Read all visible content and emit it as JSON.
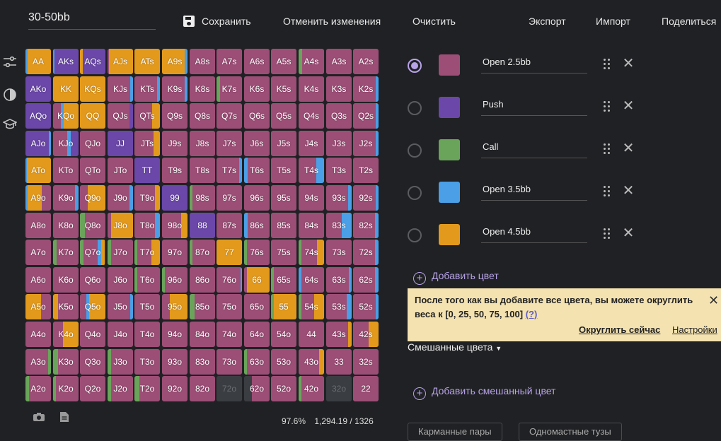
{
  "range_name": "30-50bb",
  "toolbar": {
    "save": "Сохранить",
    "undo": "Отменить изменения",
    "clear": "Очистить",
    "export": "Экспорт",
    "import": "Импорт",
    "share": "Поделиться"
  },
  "sidebar": {
    "icons": [
      "sliders-icon",
      "contrast-icon",
      "graduation-cap-icon"
    ]
  },
  "colors": {
    "open25": "#9c4e76",
    "push": "#6a47a8",
    "call": "#6aa45a",
    "open35": "#4a9fe6",
    "open45": "#e39a1c",
    "empty": "#3a3d42",
    "accent": "#b7a3e8"
  },
  "grid": {
    "rows": [
      [
        "AA",
        "AKs",
        "AQs",
        "AJs",
        "ATs",
        "A9s",
        "A8s",
        "A7s",
        "A6s",
        "A5s",
        "A4s",
        "A3s",
        "A2s"
      ],
      [
        "AKo",
        "KK",
        "KQs",
        "KJs",
        "KTs",
        "K9s",
        "K8s",
        "K7s",
        "K6s",
        "K5s",
        "K4s",
        "K3s",
        "K2s"
      ],
      [
        "AQo",
        "KQo",
        "QQ",
        "QJs",
        "QTs",
        "Q9s",
        "Q8s",
        "Q7s",
        "Q6s",
        "Q5s",
        "Q4s",
        "Q3s",
        "Q2s"
      ],
      [
        "AJo",
        "KJo",
        "QJo",
        "JJ",
        "JTs",
        "J9s",
        "J8s",
        "J7s",
        "J6s",
        "J5s",
        "J4s",
        "J3s",
        "J2s"
      ],
      [
        "ATo",
        "KTo",
        "QTo",
        "JTo",
        "TT",
        "T9s",
        "T8s",
        "T7s",
        "T6s",
        "T5s",
        "T4s",
        "T3s",
        "T2s"
      ],
      [
        "A9o",
        "K9o",
        "Q9o",
        "J9o",
        "T9o",
        "99",
        "98s",
        "97s",
        "96s",
        "95s",
        "94s",
        "93s",
        "92s"
      ],
      [
        "A8o",
        "K8o",
        "Q8o",
        "J8o",
        "T8o",
        "98o",
        "88",
        "87s",
        "86s",
        "85s",
        "84s",
        "83s",
        "82s"
      ],
      [
        "A7o",
        "K7o",
        "Q7o",
        "J7o",
        "T7o",
        "97o",
        "87o",
        "77",
        "76s",
        "75s",
        "74s",
        "73s",
        "72s"
      ],
      [
        "A6o",
        "K6o",
        "Q6o",
        "J6o",
        "T6o",
        "96o",
        "86o",
        "76o",
        "66",
        "65s",
        "64s",
        "63s",
        "62s"
      ],
      [
        "A5o",
        "K5o",
        "Q5o",
        "J5o",
        "T5o",
        "95o",
        "85o",
        "75o",
        "65o",
        "55",
        "54s",
        "53s",
        "52s"
      ],
      [
        "A4o",
        "K4o",
        "Q4o",
        "J4o",
        "T4o",
        "94o",
        "84o",
        "74o",
        "64o",
        "54o",
        "44",
        "43s",
        "42s"
      ],
      [
        "A3o",
        "K3o",
        "Q3o",
        "J3o",
        "T3o",
        "93o",
        "83o",
        "73o",
        "63o",
        "53o",
        "43o",
        "33",
        "32s"
      ],
      [
        "A2o",
        "K2o",
        "Q2o",
        "J2o",
        "T2o",
        "92o",
        "82o",
        "72o",
        "62o",
        "52o",
        "42o",
        "32o",
        "22"
      ]
    ],
    "mixes": {
      "AA": [
        [
          "open35",
          0.08
        ],
        [
          "open45",
          0.92
        ]
      ],
      "AKs": [
        [
          "open35",
          0.05
        ],
        [
          "push",
          0.95
        ]
      ],
      "AQs": [
        [
          "open45",
          0.12
        ],
        [
          "push",
          0.88
        ]
      ],
      "AJs": [
        [
          "open25",
          0.06
        ],
        [
          "open45",
          0.94
        ]
      ],
      "ATs": [
        [
          "open45",
          1.0
        ]
      ],
      "A9s": [
        [
          "open45",
          0.9
        ],
        [
          "open35",
          0.1
        ]
      ],
      "A4s": [
        [
          "call",
          0.15
        ],
        [
          "open25",
          0.85
        ]
      ],
      "AKo": [
        [
          "push",
          1.0
        ]
      ],
      "KK": [
        [
          "open45",
          1.0
        ]
      ],
      "KQs": [
        [
          "open45",
          1.0
        ]
      ],
      "KJs": [
        [
          "open25",
          0.9
        ],
        [
          "open35",
          0.1
        ]
      ],
      "KTs": [
        [
          "open25",
          0.9
        ],
        [
          "open35",
          0.1
        ]
      ],
      "K9s": [
        [
          "open25",
          0.9
        ],
        [
          "open35",
          0.1
        ]
      ],
      "K7s": [
        [
          "call",
          0.15
        ],
        [
          "open25",
          0.85
        ]
      ],
      "K2s": [
        [
          "open25",
          0.9
        ],
        [
          "open35",
          0.1
        ]
      ],
      "AQo": [
        [
          "push",
          1.0
        ]
      ],
      "KQo": [
        [
          "open25",
          0.3
        ],
        [
          "open35",
          0.12
        ],
        [
          "open45",
          0.58
        ]
      ],
      "QQ": [
        [
          "open45",
          1.0
        ]
      ],
      "QJs": [
        [
          "open25",
          0.85
        ],
        [
          "push",
          0.15
        ]
      ],
      "QTs": [
        [
          "open25",
          0.7
        ],
        [
          "open45",
          0.3
        ]
      ],
      "Q2s": [
        [
          "open25",
          0.9
        ],
        [
          "open35",
          0.1
        ]
      ],
      "AJo": [
        [
          "push",
          0.92
        ],
        [
          "open35",
          0.08
        ]
      ],
      "KJo": [
        [
          "open25",
          0.55
        ],
        [
          "open35",
          0.15
        ],
        [
          "push",
          0.3
        ]
      ],
      "JJ": [
        [
          "push",
          1.0
        ]
      ],
      "JTs": [
        [
          "open25",
          0.75
        ],
        [
          "open45",
          0.25
        ]
      ],
      "J2s": [
        [
          "open25",
          0.9
        ],
        [
          "open35",
          0.1
        ]
      ],
      "ATo": [
        [
          "open35",
          0.05
        ],
        [
          "open45",
          0.95
        ]
      ],
      "TT": [
        [
          "push",
          1.0
        ]
      ],
      "T7s": [
        [
          "open25",
          0.9
        ],
        [
          "open35",
          0.1
        ]
      ],
      "T6s": [
        [
          "open35",
          0.15
        ],
        [
          "open25",
          0.85
        ]
      ],
      "T4s": [
        [
          "open25",
          0.7
        ],
        [
          "open35",
          0.3
        ]
      ],
      "A9o": [
        [
          "open35",
          0.08
        ],
        [
          "open45",
          0.55
        ],
        [
          "open25",
          0.37
        ]
      ],
      "K9o": [
        [
          "open25",
          0.85
        ],
        [
          "open35",
          0.15
        ]
      ],
      "Q9o": [
        [
          "open25",
          0.3
        ],
        [
          "open45",
          0.7
        ]
      ],
      "J9o": [
        [
          "open25",
          0.85
        ],
        [
          "open35",
          0.15
        ]
      ],
      "T9o": [
        [
          "open25",
          0.8
        ],
        [
          "open45",
          0.2
        ]
      ],
      "99": [
        [
          "push",
          1.0
        ]
      ],
      "98s": [
        [
          "call",
          0.1
        ],
        [
          "open25",
          0.9
        ]
      ],
      "93s": [
        [
          "open25",
          0.85
        ],
        [
          "open35",
          0.15
        ]
      ],
      "92s": [
        [
          "open25",
          0.9
        ],
        [
          "open35",
          0.1
        ]
      ],
      "Q8o": [
        [
          "call",
          0.2
        ],
        [
          "open25",
          0.8
        ]
      ],
      "J8o": [
        [
          "open25",
          0.15
        ],
        [
          "open45",
          0.85
        ]
      ],
      "T8o": [
        [
          "open25",
          0.8
        ],
        [
          "open35",
          0.2
        ]
      ],
      "98o": [
        [
          "open25",
          0.75
        ],
        [
          "open45",
          0.25
        ]
      ],
      "88": [
        [
          "push",
          1.0
        ]
      ],
      "86s": [
        [
          "open35",
          0.15
        ],
        [
          "open25",
          0.85
        ]
      ],
      "83s": [
        [
          "open25",
          0.6
        ],
        [
          "open35",
          0.4
        ]
      ],
      "82s": [
        [
          "open25",
          0.85
        ],
        [
          "open35",
          0.15
        ]
      ],
      "K7o": [
        [
          "call",
          0.15
        ],
        [
          "open25",
          0.85
        ]
      ],
      "Q7o": [
        [
          "call",
          0.15
        ],
        [
          "open25",
          0.55
        ],
        [
          "open35",
          0.15
        ],
        [
          "open45",
          0.15
        ]
      ],
      "J7o": [
        [
          "call",
          0.15
        ],
        [
          "open25",
          0.85
        ]
      ],
      "T7o": [
        [
          "call",
          0.1
        ],
        [
          "open25",
          0.55
        ],
        [
          "open45",
          0.35
        ]
      ],
      "87o": [
        [
          "call",
          0.1
        ],
        [
          "open25",
          0.9
        ]
      ],
      "77": [
        [
          "open45",
          1.0
        ]
      ],
      "76s": [
        [
          "call",
          0.12
        ],
        [
          "open25",
          0.88
        ]
      ],
      "74s": [
        [
          "call",
          0.1
        ],
        [
          "open25",
          0.6
        ],
        [
          "open45",
          0.3
        ]
      ],
      "72s": [
        [
          "open25",
          0.85
        ],
        [
          "open35",
          0.15
        ]
      ],
      "T6o": [
        [
          "call",
          0.1
        ],
        [
          "open25",
          0.9
        ]
      ],
      "96o": [
        [
          "call",
          0.1
        ],
        [
          "open25",
          0.9
        ]
      ],
      "76o": [
        [
          "open25",
          0.95
        ],
        [
          "open35",
          0.05
        ]
      ],
      "66": [
        [
          "open25",
          0.1
        ],
        [
          "open45",
          0.9
        ]
      ],
      "65s": [
        [
          "call",
          0.12
        ],
        [
          "open25",
          0.88
        ]
      ],
      "64s": [
        [
          "open35",
          0.12
        ],
        [
          "open25",
          0.88
        ]
      ],
      "63s": [
        [
          "open25",
          0.9
        ],
        [
          "open35",
          0.1
        ]
      ],
      "62s": [
        [
          "open25",
          0.85
        ],
        [
          "open35",
          0.15
        ]
      ],
      "A5o": [
        [
          "open45",
          0.6
        ],
        [
          "open25",
          0.4
        ]
      ],
      "K5o": [
        [
          "open45",
          0.2
        ],
        [
          "open25",
          0.8
        ]
      ],
      "Q5o": [
        [
          "open25",
          0.25
        ],
        [
          "open35",
          0.1
        ],
        [
          "open45",
          0.65
        ]
      ],
      "J5o": [
        [
          "open25",
          0.9
        ],
        [
          "open35",
          0.1
        ]
      ],
      "95o": [
        [
          "open25",
          0.3
        ],
        [
          "open45",
          0.7
        ]
      ],
      "85o": [
        [
          "call",
          0.2
        ],
        [
          "open25",
          0.8
        ]
      ],
      "55": [
        [
          "call",
          0.1
        ],
        [
          "open45",
          0.9
        ]
      ],
      "54s": [
        [
          "call",
          0.1
        ],
        [
          "open25",
          0.5
        ],
        [
          "open45",
          0.4
        ]
      ],
      "53s": [
        [
          "open25",
          0.8
        ],
        [
          "open35",
          0.2
        ]
      ],
      "52s": [
        [
          "open25",
          0.9
        ],
        [
          "open35",
          0.1
        ]
      ],
      "K4o": [
        [
          "open25",
          0.4
        ],
        [
          "open45",
          0.6
        ]
      ],
      "43s": [
        [
          "open25",
          0.85
        ],
        [
          "open45",
          0.15
        ]
      ],
      "42s": [
        [
          "open25",
          0.6
        ],
        [
          "open45",
          0.4
        ]
      ],
      "A3o": [
        [
          "open25",
          0.9
        ],
        [
          "call",
          0.1
        ]
      ],
      "K3o": [
        [
          "call",
          0.2
        ],
        [
          "open25",
          0.8
        ]
      ],
      "J3o": [
        [
          "call",
          0.15
        ],
        [
          "open25",
          0.85
        ]
      ],
      "63o": [
        [
          "call",
          0.1
        ],
        [
          "open25",
          0.9
        ]
      ],
      "43o": [
        [
          "open25",
          0.8
        ],
        [
          "open45",
          0.2
        ]
      ],
      "A2o": [
        [
          "call",
          0.15
        ],
        [
          "open25",
          0.85
        ]
      ],
      "K2o": [
        [
          "call",
          0.1
        ],
        [
          "open25",
          0.9
        ]
      ],
      "J2o": [
        [
          "call",
          0.15
        ],
        [
          "open25",
          0.85
        ]
      ],
      "T2o": [
        [
          "call",
          0.2
        ],
        [
          "open25",
          0.8
        ]
      ],
      "72o": [
        [
          "empty",
          1.0
        ]
      ],
      "62o": [
        [
          "empty",
          0.3
        ],
        [
          "open25",
          0.7
        ]
      ],
      "32o": [
        [
          "empty",
          1.0
        ]
      ],
      "42o": [
        [
          "call",
          0.1
        ],
        [
          "open25",
          0.9
        ]
      ]
    }
  },
  "stats": {
    "percent": "97.6%",
    "combos": "1,294.19 / 1326"
  },
  "color_rows": [
    {
      "name": "Open 2.5bb",
      "key": "open25",
      "selected": true
    },
    {
      "name": "Push",
      "key": "push",
      "selected": false
    },
    {
      "name": "Call",
      "key": "call",
      "selected": false
    },
    {
      "name": "Open 3.5bb",
      "key": "open35",
      "selected": false
    },
    {
      "name": "Open 4.5bb",
      "key": "open45",
      "selected": false
    }
  ],
  "add_color": "Добавить цвет",
  "notice": {
    "text": "После того как вы добавите все цвета, вы можете округлить веса к [0, 25, 50, 75, 100]",
    "help": "(?)",
    "round_now": "Округлить сейчас",
    "settings": "Настройки"
  },
  "mixed": {
    "label": "Смешанные цвета",
    "add": "Добавить смешанный цвет"
  },
  "chips": [
    "Карманные пары",
    "Одномастные тузы"
  ]
}
